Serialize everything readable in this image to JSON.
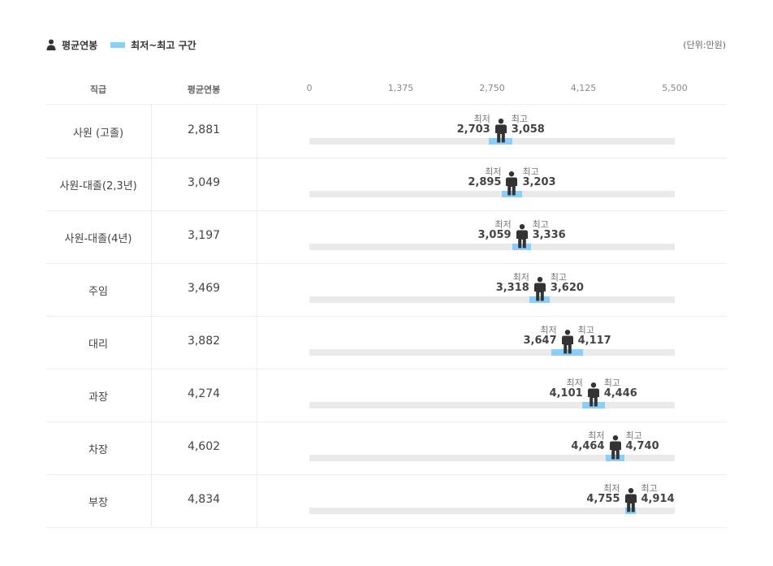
{
  "legend": {
    "avg_label": "평균연봉",
    "range_label": "최저~최고 구간",
    "person_icon": "person-icon",
    "range_color": "#8dcdf9"
  },
  "unit": "(단위:만원)",
  "columns": {
    "rank": "직급",
    "avg": "평균연봉"
  },
  "range_tags": {
    "min": "최저",
    "max": "최고"
  },
  "chart_data": {
    "type": "bar",
    "title": "",
    "xlim": [
      0,
      5500
    ],
    "ticks": [
      {
        "value": 0,
        "label": "0"
      },
      {
        "value": 1375,
        "label": "1,375"
      },
      {
        "value": 2750,
        "label": "2,750"
      },
      {
        "value": 4125,
        "label": "4,125"
      },
      {
        "value": 5500,
        "label": "5,500"
      }
    ],
    "colors": {
      "track": "#eaeaea",
      "range": "#8dcdf9",
      "figure": "#333333"
    },
    "rows": [
      {
        "label": "사원 (고졸)",
        "avg": 2881,
        "avg_label": "2,881",
        "min": 2703,
        "min_label": "2,703",
        "max": 3058,
        "max_label": "3,058"
      },
      {
        "label": "사원-대졸(2,3년)",
        "avg": 3049,
        "avg_label": "3,049",
        "min": 2895,
        "min_label": "2,895",
        "max": 3203,
        "max_label": "3,203"
      },
      {
        "label": "사원-대졸(4년)",
        "avg": 3197,
        "avg_label": "3,197",
        "min": 3059,
        "min_label": "3,059",
        "max": 3336,
        "max_label": "3,336"
      },
      {
        "label": "주임",
        "avg": 3469,
        "avg_label": "3,469",
        "min": 3318,
        "min_label": "3,318",
        "max": 3620,
        "max_label": "3,620"
      },
      {
        "label": "대리",
        "avg": 3882,
        "avg_label": "3,882",
        "min": 3647,
        "min_label": "3,647",
        "max": 4117,
        "max_label": "4,117"
      },
      {
        "label": "과장",
        "avg": 4274,
        "avg_label": "4,274",
        "min": 4101,
        "min_label": "4,101",
        "max": 4446,
        "max_label": "4,446"
      },
      {
        "label": "차장",
        "avg": 4602,
        "avg_label": "4,602",
        "min": 4464,
        "min_label": "4,464",
        "max": 4740,
        "max_label": "4,740"
      },
      {
        "label": "부장",
        "avg": 4834,
        "avg_label": "4,834",
        "min": 4755,
        "min_label": "4,755",
        "max": 4914,
        "max_label": "4,914"
      }
    ]
  }
}
